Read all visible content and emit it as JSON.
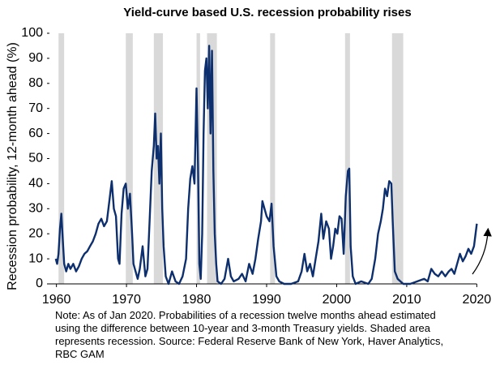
{
  "chart_data": {
    "type": "line",
    "title": "Yield-curve based U.S. recession probability rises",
    "y_label": "Recession probability, 12-month ahead (%)",
    "note": [
      "Note: As of Jan 2020. Probabilities of a recession twelve months ahead estimated",
      "using the difference between 10-year and 3-month Treasury yields. Shaded area",
      "represents recession. Source: Federal Reserve Bank of New York, Haver Analytics,",
      "RBC GAM"
    ],
    "color": "#0d2f6e",
    "recession_color": "#d9d9d9",
    "recessions": [
      [
        1960.3,
        1961.1
      ],
      [
        1969.9,
        1970.9
      ],
      [
        1973.9,
        1975.2
      ],
      [
        1980.0,
        1980.5
      ],
      [
        1981.5,
        1982.9
      ],
      [
        1990.5,
        1991.2
      ],
      [
        2001.2,
        2001.9
      ],
      [
        2007.9,
        2009.5
      ]
    ],
    "x": [
      1959.9,
      1960.1,
      1960.3,
      1960.5,
      1960.7,
      1960.9,
      1961.1,
      1961.4,
      1961.7,
      1962.0,
      1962.4,
      1962.8,
      1963.2,
      1963.6,
      1964.0,
      1964.4,
      1964.8,
      1965.2,
      1965.6,
      1966.0,
      1966.4,
      1966.8,
      1967.2,
      1967.6,
      1967.9,
      1968.2,
      1968.5,
      1968.8,
      1969.0,
      1969.3,
      1969.6,
      1969.9,
      1970.2,
      1970.5,
      1970.8,
      1971.0,
      1971.3,
      1971.6,
      1971.9,
      1972.3,
      1972.7,
      1973.0,
      1973.3,
      1973.6,
      1973.9,
      1974.1,
      1974.3,
      1974.5,
      1974.7,
      1974.9,
      1975.1,
      1975.3,
      1975.6,
      1976.0,
      1976.5,
      1977.0,
      1977.5,
      1978.0,
      1978.5,
      1978.8,
      1979.1,
      1979.4,
      1979.7,
      1980.0,
      1980.2,
      1980.4,
      1980.6,
      1980.8,
      1981.0,
      1981.2,
      1981.4,
      1981.6,
      1981.8,
      1982.0,
      1982.2,
      1982.4,
      1982.6,
      1982.8,
      1983.0,
      1983.5,
      1984.0,
      1984.5,
      1984.9,
      1985.3,
      1986.0,
      1986.5,
      1987.0,
      1987.5,
      1988.0,
      1988.4,
      1988.8,
      1989.2,
      1989.4,
      1989.7,
      1990.0,
      1990.4,
      1990.7,
      1991.0,
      1991.4,
      1991.8,
      1992.5,
      1993.5,
      1994.5,
      1995.0,
      1995.4,
      1995.8,
      1996.2,
      1996.6,
      1997.0,
      1997.4,
      1997.8,
      1998.1,
      1998.5,
      1998.9,
      1999.2,
      1999.5,
      1999.8,
      2000.1,
      2000.4,
      2000.7,
      2001.0,
      2001.3,
      2001.6,
      2001.8,
      2002.0,
      2002.3,
      2002.7,
      2003.5,
      2004.5,
      2005.0,
      2005.5,
      2005.9,
      2006.3,
      2006.6,
      2006.9,
      2007.2,
      2007.5,
      2007.8,
      2008.0,
      2008.3,
      2008.7,
      2009.5,
      2010.5,
      2011.5,
      2012.5,
      2013.0,
      2013.5,
      2014.0,
      2014.5,
      2015.0,
      2015.5,
      2016.0,
      2016.4,
      2016.8,
      2017.2,
      2017.6,
      2018.0,
      2018.4,
      2018.8,
      2019.2,
      2019.6,
      2020.0
    ],
    "values": [
      10,
      8,
      12,
      22,
      28,
      18,
      8,
      5,
      8,
      6,
      8,
      5,
      7,
      10,
      12,
      13,
      15,
      17,
      20,
      24,
      26,
      23,
      25,
      34,
      41,
      30,
      27,
      10,
      8,
      28,
      38,
      40,
      30,
      36,
      20,
      8,
      5,
      2,
      6,
      15,
      3,
      6,
      25,
      45,
      55,
      68,
      50,
      55,
      40,
      60,
      30,
      15,
      3,
      0,
      5,
      1,
      0,
      3,
      10,
      30,
      42,
      47,
      40,
      78,
      48,
      8,
      2,
      20,
      60,
      85,
      90,
      70,
      95,
      60,
      93,
      45,
      20,
      8,
      1,
      0,
      2,
      10,
      3,
      1,
      2,
      4,
      1,
      8,
      4,
      10,
      18,
      25,
      33,
      30,
      27,
      25,
      32,
      15,
      3,
      1,
      0,
      0,
      1,
      5,
      12,
      5,
      8,
      3,
      10,
      17,
      28,
      18,
      25,
      22,
      10,
      15,
      22,
      20,
      27,
      26,
      12,
      35,
      45,
      46,
      15,
      3,
      0,
      1,
      0,
      2,
      10,
      20,
      25,
      30,
      38,
      35,
      41,
      40,
      25,
      5,
      2,
      0,
      0,
      1,
      2,
      1,
      6,
      4,
      3,
      5,
      3,
      5,
      6,
      4,
      8,
      12,
      9,
      11,
      14,
      12,
      15,
      24
    ],
    "xlim": [
      1959,
      2021
    ],
    "xticks": [
      1960,
      1970,
      1980,
      1990,
      2000,
      2010,
      2020
    ],
    "ylim": [
      0,
      100
    ],
    "yticks": [
      0,
      10,
      20,
      30,
      40,
      50,
      60,
      70,
      80,
      90,
      100
    ],
    "grid": false
  }
}
